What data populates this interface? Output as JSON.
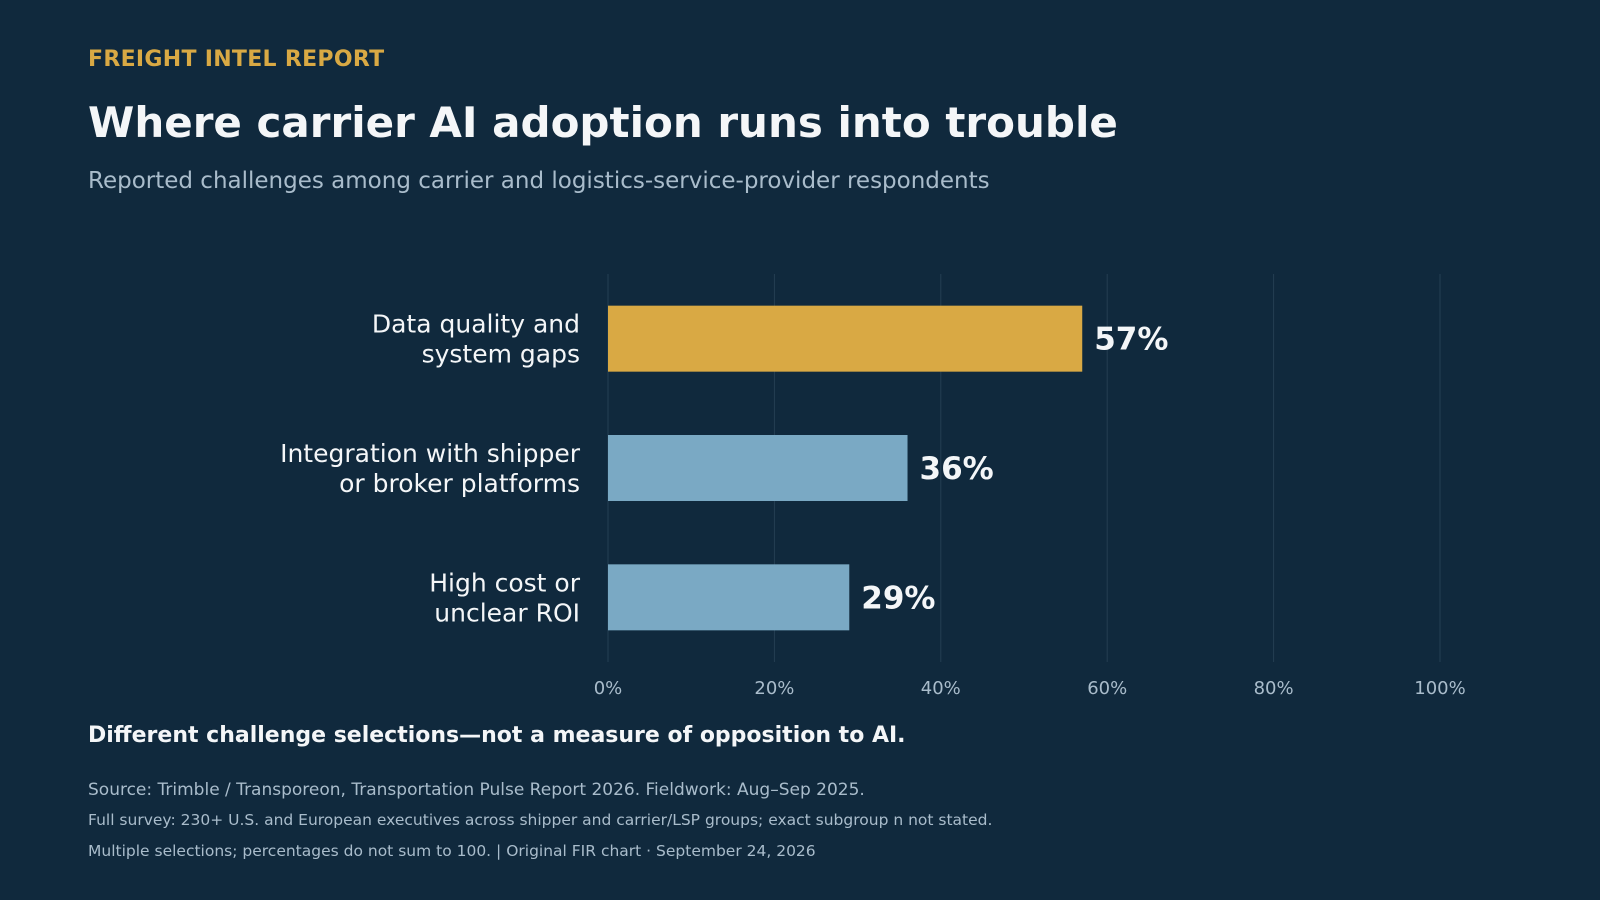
{
  "header": {
    "kicker": "FREIGHT INTEL REPORT",
    "title": "Where carrier AI adoption runs into trouble",
    "subtitle": "Reported challenges among carrier and logistics-service-provider respondents"
  },
  "chart_data": {
    "type": "bar",
    "orientation": "horizontal",
    "categories": [
      [
        "Data quality and",
        "system gaps"
      ],
      [
        "Integration with shipper",
        "or broker platforms"
      ],
      [
        "High cost or",
        "unclear ROI"
      ]
    ],
    "values": [
      57,
      36,
      29
    ],
    "value_labels": [
      "57%",
      "36%",
      "29%"
    ],
    "colors": [
      "#d9a944",
      "#7aa9c4",
      "#7aa9c4"
    ],
    "xlim": [
      0,
      100
    ],
    "ticks": [
      0,
      20,
      40,
      60,
      80,
      100
    ],
    "tick_labels": [
      "0%",
      "20%",
      "40%",
      "60%",
      "80%",
      "100%"
    ],
    "grid": "vertical",
    "grid_color": "#243e52",
    "label_color": "#f4f6f8",
    "tick_color": "#a9bccb"
  },
  "footer": {
    "takeaway": "Different challenge selections—not a measure of opposition to AI.",
    "source": "Source: Trimble / Transporeon, Transportation Pulse Report 2026. Fieldwork: Aug–Sep 2025.",
    "survey": "Full survey: 230+ U.S. and European executives across shipper and carrier/LSP groups; exact subgroup n not stated.",
    "method": "Multiple selections; percentages do not sum to 100.  |  Original FIR chart · September 24, 2026"
  }
}
